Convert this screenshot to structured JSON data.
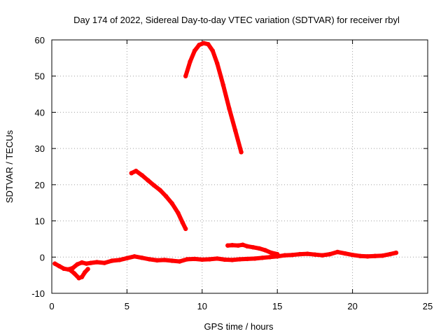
{
  "chart_data": {
    "type": "scatter",
    "title": "Day 174 of 2022, Sidereal Day-to-day VTEC variation (SDTVAR) for receiver rbyl",
    "xlabel": "GPS time / hours",
    "ylabel": "SDTVAR / TECUs",
    "xlim": [
      0,
      25
    ],
    "ylim": [
      -10,
      60
    ],
    "xticks": [
      "0",
      "5",
      "10",
      "15",
      "20",
      "25"
    ],
    "yticks": [
      "-10",
      "0",
      "10",
      "20",
      "30",
      "40",
      "50",
      "60"
    ],
    "grid": true,
    "color": "#ff0000",
    "series": [
      {
        "name": "baseline",
        "points": [
          [
            0.2,
            -1.8
          ],
          [
            0.5,
            -2.5
          ],
          [
            0.8,
            -3.2
          ],
          [
            1.1,
            -3.4
          ],
          [
            1.4,
            -3.0
          ],
          [
            1.7,
            -2.0
          ],
          [
            2.0,
            -1.5
          ],
          [
            2.3,
            -1.8
          ],
          [
            2.6,
            -1.6
          ],
          [
            3.0,
            -1.4
          ],
          [
            3.5,
            -1.6
          ],
          [
            4.0,
            -1.0
          ],
          [
            4.5,
            -0.8
          ],
          [
            5.0,
            -0.3
          ],
          [
            5.5,
            0.2
          ],
          [
            6.0,
            -0.2
          ],
          [
            6.5,
            -0.6
          ],
          [
            7.0,
            -0.9
          ],
          [
            7.5,
            -0.8
          ],
          [
            8.0,
            -1.0
          ],
          [
            8.5,
            -1.2
          ],
          [
            9.0,
            -0.6
          ],
          [
            9.5,
            -0.5
          ],
          [
            10.0,
            -0.7
          ],
          [
            10.5,
            -0.6
          ],
          [
            11.0,
            -0.4
          ],
          [
            11.5,
            -0.7
          ],
          [
            12.0,
            -0.8
          ],
          [
            12.5,
            -0.6
          ],
          [
            13.0,
            -0.5
          ],
          [
            13.5,
            -0.4
          ],
          [
            14.0,
            -0.2
          ],
          [
            14.5,
            0.0
          ],
          [
            15.0,
            0.2
          ],
          [
            15.5,
            0.5
          ],
          [
            16.0,
            0.6
          ],
          [
            16.5,
            0.8
          ],
          [
            17.0,
            0.9
          ],
          [
            17.5,
            0.7
          ],
          [
            18.0,
            0.5
          ],
          [
            18.5,
            0.8
          ],
          [
            19.0,
            1.4
          ],
          [
            19.5,
            1.0
          ],
          [
            20.0,
            0.6
          ],
          [
            20.5,
            0.3
          ],
          [
            21.0,
            0.2
          ],
          [
            21.5,
            0.3
          ],
          [
            22.0,
            0.4
          ],
          [
            22.5,
            0.8
          ],
          [
            22.9,
            1.2
          ]
        ]
      },
      {
        "name": "dip",
        "points": [
          [
            1.2,
            -3.5
          ],
          [
            1.5,
            -4.5
          ],
          [
            1.8,
            -5.8
          ],
          [
            2.0,
            -5.5
          ],
          [
            2.2,
            -4.2
          ],
          [
            2.4,
            -3.3
          ]
        ]
      },
      {
        "name": "arc-5h",
        "points": [
          [
            5.3,
            23.2
          ],
          [
            5.6,
            23.8
          ],
          [
            6.0,
            22.6
          ],
          [
            6.4,
            21.2
          ],
          [
            6.8,
            19.8
          ],
          [
            7.2,
            18.5
          ],
          [
            7.6,
            16.8
          ],
          [
            8.0,
            14.8
          ],
          [
            8.4,
            12.2
          ],
          [
            8.7,
            9.5
          ],
          [
            8.9,
            7.8
          ]
        ]
      },
      {
        "name": "arc-9h",
        "points": [
          [
            8.9,
            50.0
          ],
          [
            9.2,
            54.0
          ],
          [
            9.5,
            57.0
          ],
          [
            9.8,
            58.6
          ],
          [
            10.1,
            59.1
          ],
          [
            10.4,
            58.8
          ],
          [
            10.7,
            57.0
          ],
          [
            11.0,
            53.5
          ],
          [
            11.4,
            47.5
          ],
          [
            11.8,
            41.0
          ],
          [
            12.2,
            35.0
          ],
          [
            12.6,
            29.0
          ]
        ]
      },
      {
        "name": "arc-12h",
        "points": [
          [
            11.7,
            3.2
          ],
          [
            12.0,
            3.3
          ],
          [
            12.4,
            3.2
          ],
          [
            12.7,
            3.4
          ],
          [
            13.0,
            3.0
          ],
          [
            13.4,
            2.7
          ],
          [
            13.8,
            2.4
          ],
          [
            14.2,
            1.9
          ],
          [
            14.6,
            1.2
          ],
          [
            15.0,
            0.8
          ]
        ]
      }
    ]
  }
}
